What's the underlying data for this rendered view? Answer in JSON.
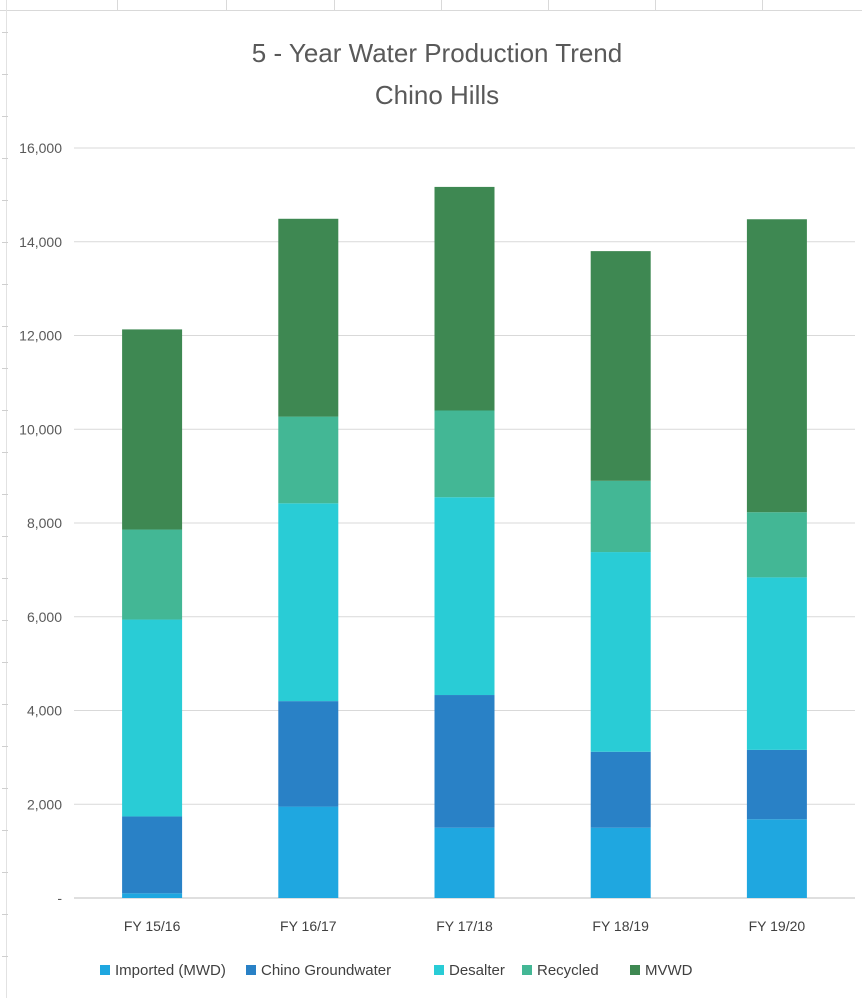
{
  "chart_data": {
    "type": "bar",
    "stacked": true,
    "title": "5 - Year Water Production Trend",
    "subtitle": "Chino Hills",
    "categories": [
      "FY 15/16",
      "FY 16/17",
      "FY 17/18",
      "FY 18/19",
      "FY 19/20"
    ],
    "series": [
      {
        "name": "Imported (MWD)",
        "color": "#1fa7e0",
        "values": [
          100,
          1950,
          1500,
          1500,
          1680
        ]
      },
      {
        "name": "Chino Groundwater",
        "color": "#2981c6",
        "values": [
          1640,
          2250,
          2830,
          1620,
          1480
        ]
      },
      {
        "name": "Desalter",
        "color": "#29ccd6",
        "values": [
          4200,
          4220,
          4220,
          4260,
          3680
        ]
      },
      {
        "name": "Recycled",
        "color": "#43b795",
        "values": [
          1920,
          1850,
          1850,
          1520,
          1390
        ]
      },
      {
        "name": "MVWD",
        "color": "#3e8852",
        "values": [
          4270,
          4220,
          4770,
          4900,
          6250
        ]
      }
    ],
    "ylim": [
      0,
      16000
    ],
    "yticks": [
      0,
      2000,
      4000,
      6000,
      8000,
      10000,
      12000,
      14000,
      16000
    ],
    "ytick_labels": [
      "-",
      "2,000",
      "4,000",
      "6,000",
      "8,000",
      "10,000",
      "12,000",
      "14,000",
      "16,000"
    ],
    "grid": true,
    "legend_position": "bottom"
  }
}
